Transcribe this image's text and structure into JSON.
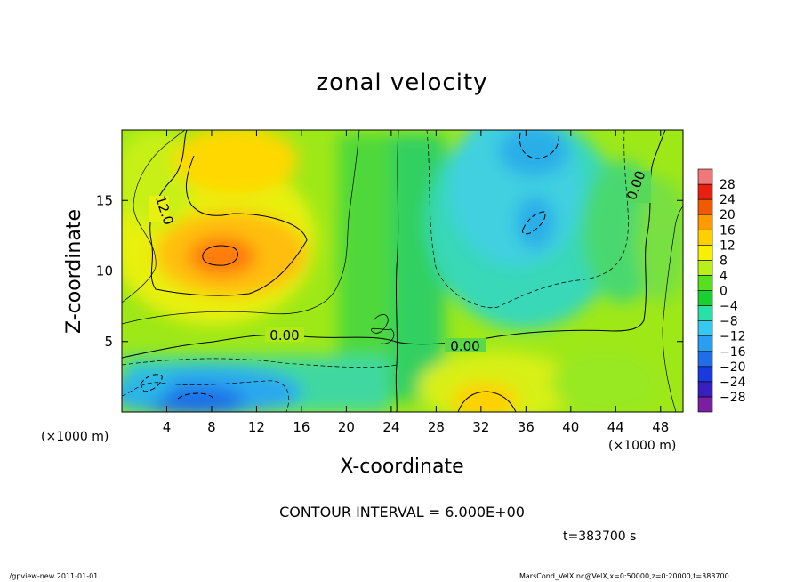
{
  "chart_data": {
    "type": "heatmap",
    "title": "zonal velocity",
    "xlabel": "X-coordinate",
    "ylabel": "Z-coordinate",
    "x_unit_label": "(×1000 m)",
    "xlim": [
      0,
      50
    ],
    "ylim": [
      0,
      20
    ],
    "xticks": [
      4,
      8,
      12,
      16,
      20,
      24,
      28,
      32,
      36,
      40,
      44,
      48
    ],
    "yticks": [
      5,
      10,
      15
    ],
    "colorbar_levels": [
      -28,
      -24,
      -20,
      -16,
      -12,
      -8,
      -4,
      0,
      4,
      8,
      12,
      16,
      20,
      24,
      28
    ],
    "colorbar_colors": [
      "#7a1fa0",
      "#3a1fc0",
      "#1a3ae0",
      "#1f6ee8",
      "#2a9ef0",
      "#36c8f0",
      "#28e0a8",
      "#18d030",
      "#58e020",
      "#b8f018",
      "#f8f000",
      "#ffd000",
      "#ff9a00",
      "#f05a00",
      "#e82010",
      "#f07878"
    ],
    "contour_labels": [
      "12.0",
      "0.00",
      "0.00",
      "0.00"
    ],
    "contour_interval_text": "CONTOUR INTERVAL = 6.000E+00",
    "time_text": "t=383700 s",
    "footer_left": "./gpview-new  2011-01-01",
    "footer_right": "MarsCond_VelX.nc@VelX,x=0:50000,z=0:20000,t=383700"
  }
}
